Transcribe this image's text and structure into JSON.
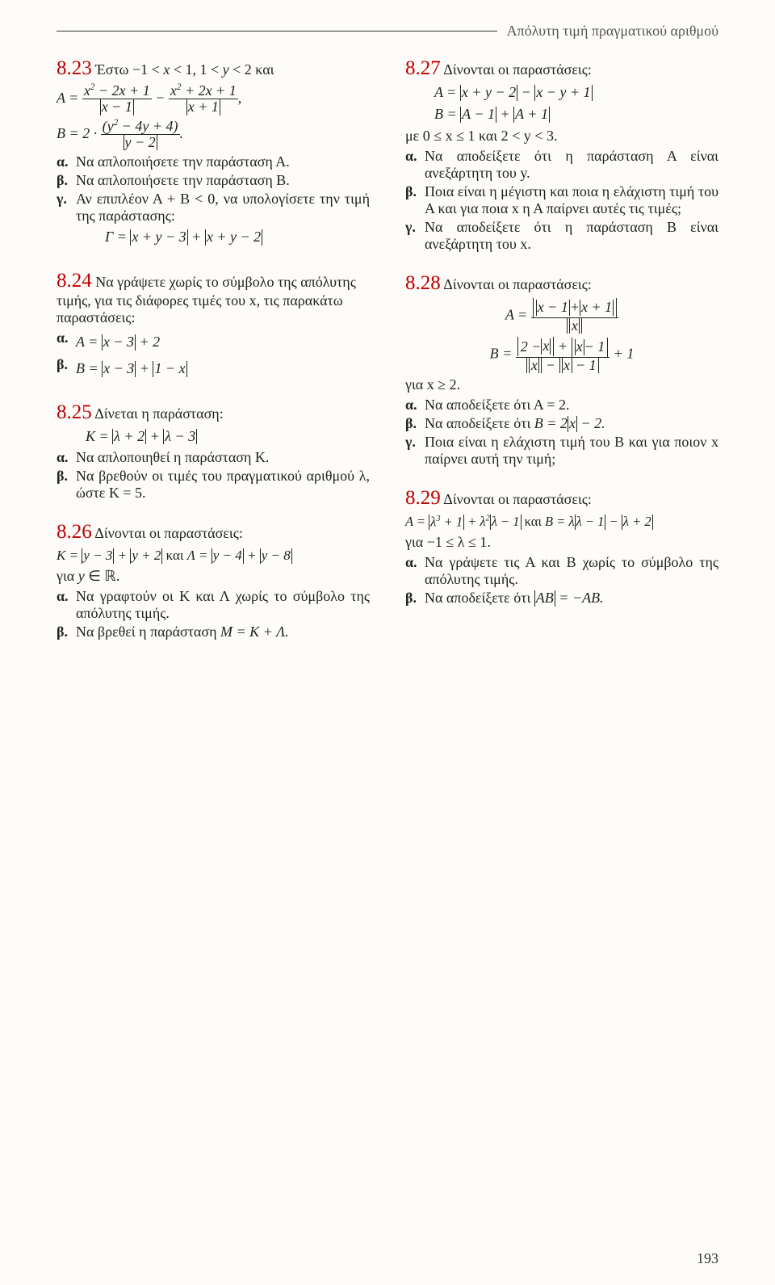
{
  "header": {
    "title": "Απόλυτη τιμή πραγματικού αριθμού"
  },
  "ex23": {
    "num": "8.23",
    "lead1": "Έστω −1 < ",
    "lead2": " < 1, 1 < ",
    "lead3": " < 2 και",
    "a": "Να απλοποιήσετε την παράσταση Α.",
    "b": "Να απλοποιήσετε την παράσταση Β.",
    "c1": "Αν επιπλέον ",
    "c2": "Α + Β < 0, να υπολογίσετε την τιμή της παράστασης:"
  },
  "ex24": {
    "num": "8.24",
    "text": "Να γράψετε χωρίς το σύμβολο της απόλυτης τιμής, για τις διάφορες τιμές του x, τις παρακάτω παραστάσεις:",
    "a_lhs": "A = ",
    "b_lhs": "B = "
  },
  "ex25": {
    "num": "8.25",
    "lead": "Δίνεται η παράσταση:",
    "a": "Να απλοποιηθεί η παράσταση Κ.",
    "b": "Να βρεθούν οι τιμές του πραγματικού αριθμού λ, ώστε Κ = 5."
  },
  "ex26": {
    "num": "8.26",
    "lead": "Δίνονται οι παραστάσεις:",
    "and": " και ",
    "for": "για ",
    "a": "Να γραφτούν οι Κ και Λ χωρίς το σύμβολο της απόλυτης τιμής.",
    "b_pre": "Να βρεθεί η παράσταση ",
    "b_math": "M = K + Λ."
  },
  "ex27": {
    "num": "8.27",
    "lead": "Δίνονται οι παραστάσεις:",
    "cond": "με 0 ≤ x ≤ 1 και 2 < y < 3.",
    "a": "Να αποδείξετε ότι η παράσταση Α είναι ανεξάρτητη του y.",
    "b": "Ποια είναι η μέγιστη και ποια η ελάχιστη τιμή του Α και για ποια x η Α παίρνει αυτές τις τιμές;",
    "c": "Να αποδείξετε ότι η παράσταση Β είναι ανεξάρτητη του x."
  },
  "ex28": {
    "num": "8.28",
    "lead": "Δίνονται οι παραστάσεις:",
    "for": "για x ≥ 2.",
    "a": "Να αποδείξετε ότι Α = 2.",
    "b_pre": "Να αποδείξετε ότι ",
    "c": "Ποια είναι η ελάχιστη τιμή του Β και για ποιον x παίρνει αυτή την τιμή;"
  },
  "ex29": {
    "num": "8.29",
    "lead": "Δίνονται οι παραστάσεις:",
    "and": "  και  ",
    "for": "για −1 ≤ λ ≤ 1.",
    "a": "Να γράψετε τις Α και Β χωρίς το σύμβολο της απόλυτης τιμής.",
    "b_pre": "Να αποδείξετε ότι "
  },
  "pageNum": "193",
  "labels": {
    "a": "α.",
    "b": "β.",
    "c": "γ."
  },
  "colors": {
    "accent": "#c00000"
  }
}
